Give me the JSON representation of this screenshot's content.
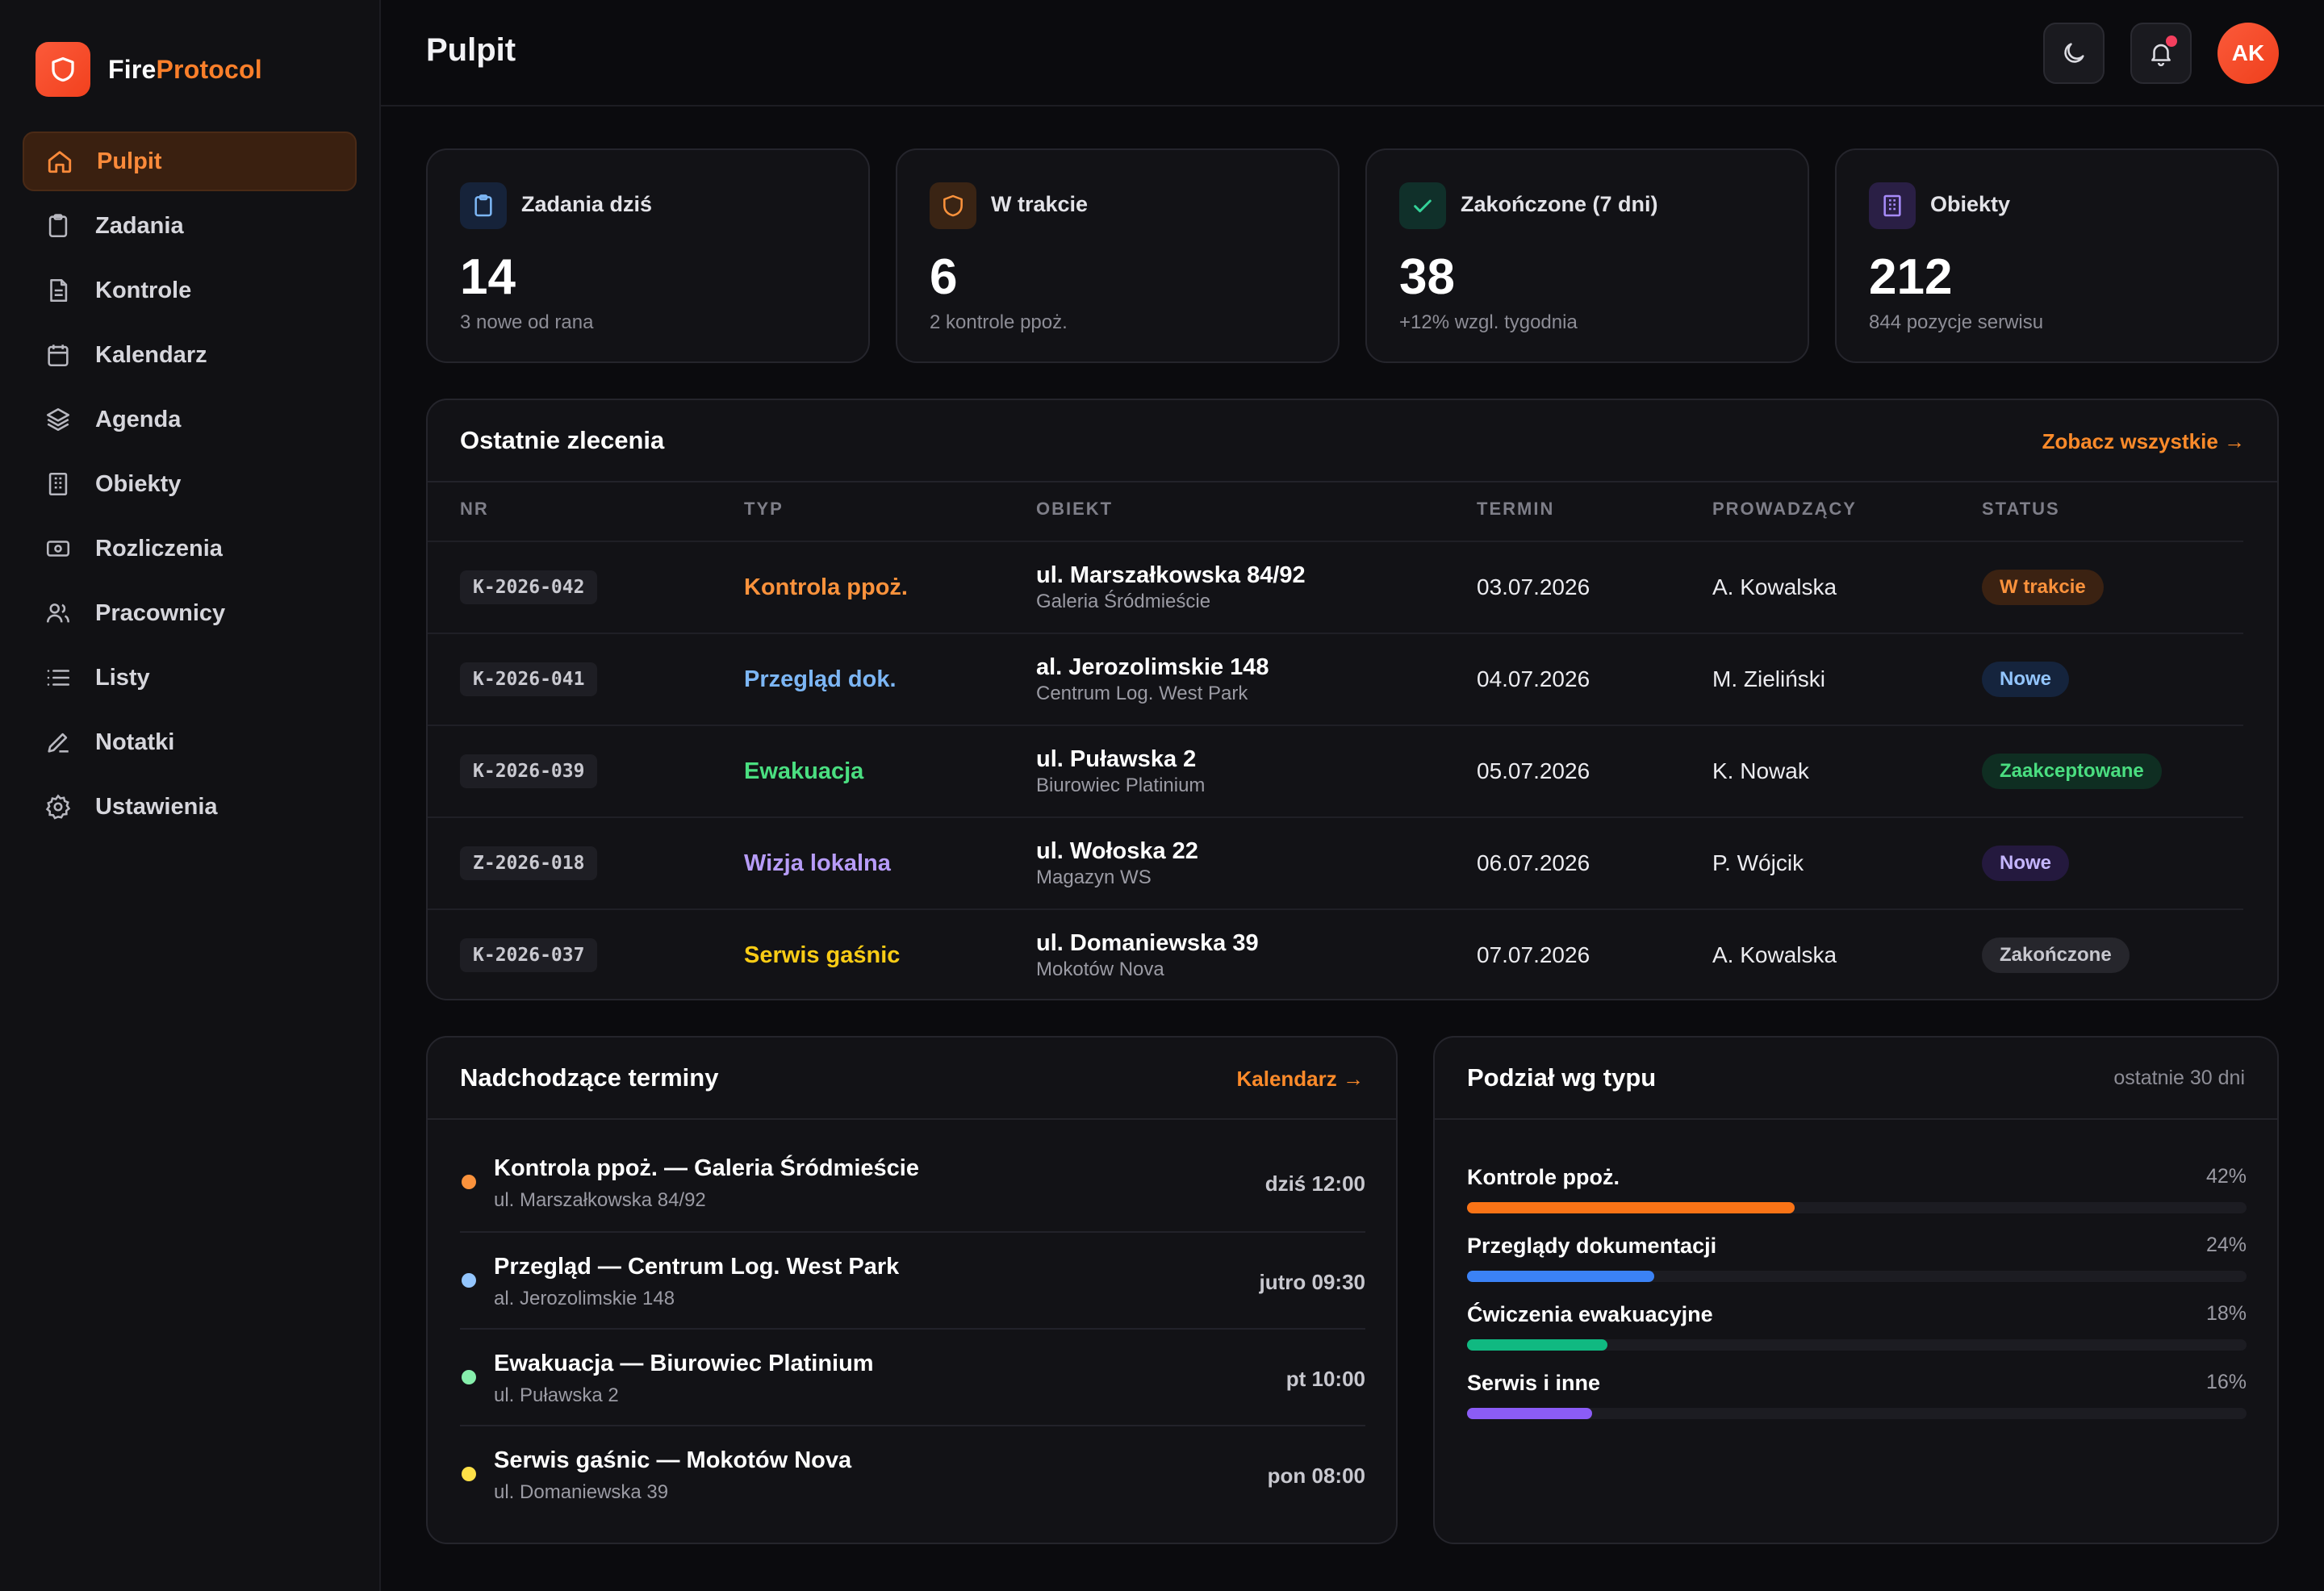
{
  "brand": {
    "name_part1": "Fire",
    "name_part2": "Protocol",
    "logo_icon": "shield-icon"
  },
  "sidebar": {
    "items": [
      {
        "label": "Pulpit",
        "icon": "home-icon",
        "active": true
      },
      {
        "label": "Zadania",
        "icon": "clipboard-icon",
        "active": false
      },
      {
        "label": "Kontrole",
        "icon": "document-icon",
        "active": false
      },
      {
        "label": "Kalendarz",
        "icon": "calendar-icon",
        "active": false
      },
      {
        "label": "Agenda",
        "icon": "layers-icon",
        "active": false
      },
      {
        "label": "Obiekty",
        "icon": "building-icon",
        "active": false
      },
      {
        "label": "Rozliczenia",
        "icon": "banknote-icon",
        "active": false
      },
      {
        "label": "Pracownicy",
        "icon": "users-icon",
        "active": false
      },
      {
        "label": "Listy",
        "icon": "list-icon",
        "active": false
      },
      {
        "label": "Notatki",
        "icon": "pen-icon",
        "active": false
      },
      {
        "label": "Ustawienia",
        "icon": "gear-icon",
        "active": false
      }
    ]
  },
  "header": {
    "title": "Pulpit",
    "theme_icon": "moon-icon",
    "notifications_icon": "bell-icon",
    "avatar_initials": "AK"
  },
  "stats": [
    {
      "label": "Zadania dziś",
      "value": "14",
      "sub": "3 nowe od rana",
      "icon": "clipboard-icon",
      "color": "#60a5fa",
      "bg": "#16233a"
    },
    {
      "label": "W trakcie",
      "value": "6",
      "sub": "2 kontrole ppoż.",
      "icon": "shield-icon",
      "color": "#fb923c",
      "bg": "#3a2414"
    },
    {
      "label": "Zakończone (7 dni)",
      "value": "38",
      "sub": "+12% wzgl. tygodnia",
      "icon": "check-icon",
      "color": "#34d399",
      "bg": "#10302a"
    },
    {
      "label": "Obiekty",
      "value": "212",
      "sub": "844 pozycje serwisu",
      "icon": "building-icon",
      "color": "#a78bfa",
      "bg": "#2a1f45"
    }
  ],
  "orders": {
    "title": "Ostatnie zlecenia",
    "link": "Zobacz wszystkie →",
    "columns": [
      "NR",
      "TYP",
      "OBIEKT",
      "TERMIN",
      "PROWADZĄCY",
      "STATUS"
    ],
    "rows": [
      {
        "nr": "K-2026-042",
        "typ": "Kontrola ppoż.",
        "typ_color": "#fb923c",
        "obiekt": "ul. Marszałkowska 84/92",
        "obiekt_sub": "Galeria Śródmieście",
        "termin": "03.07.2026",
        "prowadzacy": "A. Kowalska",
        "status": "W trakcie",
        "status_color": "#fb923c",
        "status_bg": "#3b2212"
      },
      {
        "nr": "K-2026-041",
        "typ": "Przegląd dok.",
        "typ_color": "#7cb6f5",
        "obiekt": "al. Jerozolimskie 148",
        "obiekt_sub": "Centrum Log. West Park",
        "termin": "04.07.2026",
        "prowadzacy": "M. Zieliński",
        "status": "Nowe",
        "status_color": "#93c5fd",
        "status_bg": "#15243d"
      },
      {
        "nr": "K-2026-039",
        "typ": "Ewakuacja",
        "typ_color": "#4ade80",
        "obiekt": "ul. Puławska 2",
        "obiekt_sub": "Biurowiec Platinium",
        "termin": "05.07.2026",
        "prowadzacy": "K. Nowak",
        "status": "Zaakceptowane",
        "status_color": "#4ade80",
        "status_bg": "#0f2e22"
      },
      {
        "nr": "Z-2026-018",
        "typ": "Wizja lokalna",
        "typ_color": "#b79cf8",
        "obiekt": "ul. Wołoska 22",
        "obiekt_sub": "Magazyn WS",
        "termin": "06.07.2026",
        "prowadzacy": "P. Wójcik",
        "status": "Nowe",
        "status_color": "#c4b5fd",
        "status_bg": "#24193e"
      },
      {
        "nr": "K-2026-037",
        "typ": "Serwis gaśnic",
        "typ_color": "#facc15",
        "obiekt": "ul. Domaniewska 39",
        "obiekt_sub": "Mokotów Nova",
        "termin": "07.07.2026",
        "prowadzacy": "A. Kowalska",
        "status": "Zakończone",
        "status_color": "#c7c7ce",
        "status_bg": "#26262c"
      }
    ]
  },
  "upcoming": {
    "title": "Nadchodzące terminy",
    "link": "Kalendarz →",
    "items": [
      {
        "title": "Kontrola ppoż. — Galeria Śródmieście",
        "sub": "ul. Marszałkowska 84/92",
        "time": "dziś 12:00",
        "color": "#fb923c"
      },
      {
        "title": "Przegląd — Centrum Log. West Park",
        "sub": "al. Jerozolimskie 148",
        "time": "jutro 09:30",
        "color": "#93c5fd"
      },
      {
        "title": "Ewakuacja — Biurowiec Platinium",
        "sub": "ul. Puławska 2",
        "time": "pt 10:00",
        "color": "#86efac"
      },
      {
        "title": "Serwis gaśnic — Mokotów Nova",
        "sub": "ul. Domaniewska 39",
        "time": "pon 08:00",
        "color": "#fde047"
      }
    ]
  },
  "breakdown": {
    "title": "Podział wg typu",
    "note": "ostatnie 30 dni",
    "items": [
      {
        "label": "Kontrole ppoż.",
        "pct": "42%",
        "value": 42,
        "color": "#f97316"
      },
      {
        "label": "Przeglądy dokumentacji",
        "pct": "24%",
        "value": 24,
        "color": "#3b82f6"
      },
      {
        "label": "Ćwiczenia ewakuacyjne",
        "pct": "18%",
        "value": 18,
        "color": "#10b981"
      },
      {
        "label": "Serwis i inne",
        "pct": "16%",
        "value": 16,
        "color": "#8b5cf6"
      }
    ]
  }
}
